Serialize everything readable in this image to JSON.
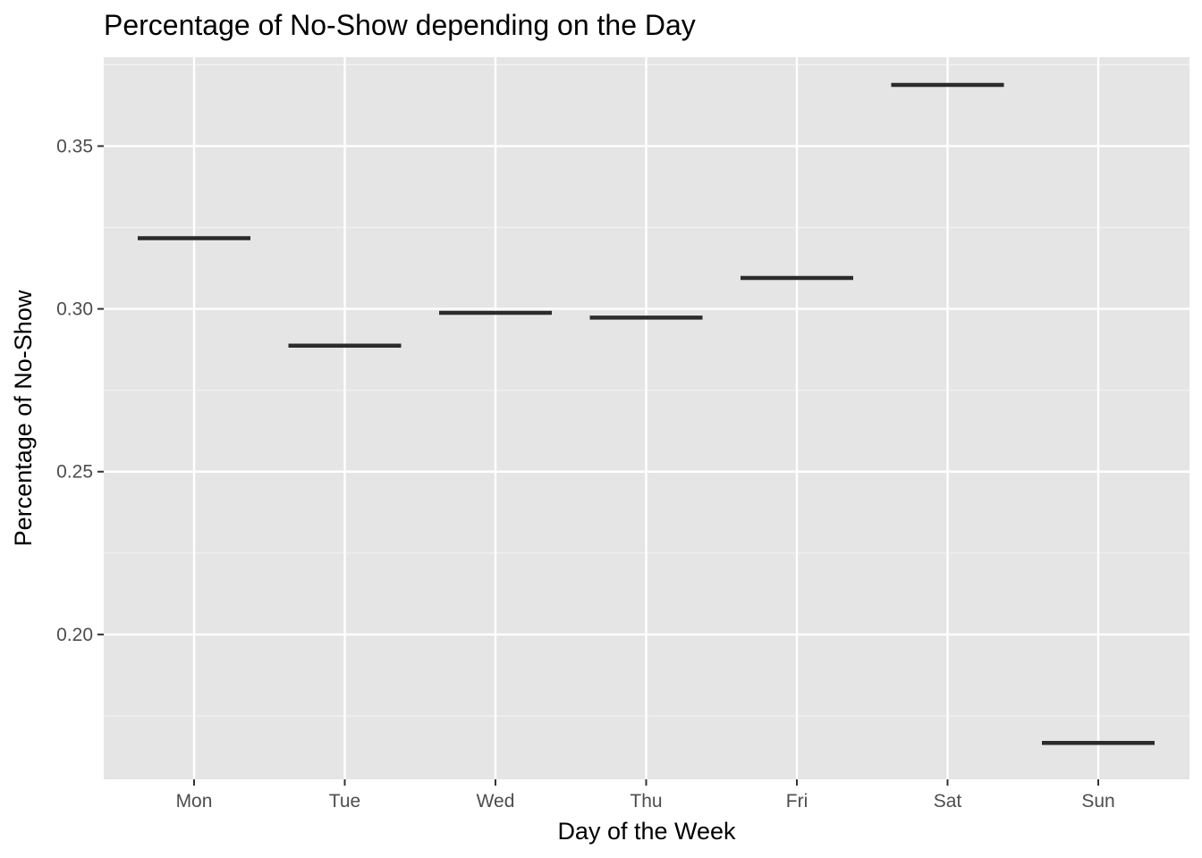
{
  "chart_data": {
    "type": "crossbar",
    "title": "Percentage of No-Show depending on the Day",
    "xlabel": "Day of the Week",
    "ylabel": "Percentage of No-Show",
    "categories": [
      "Mon",
      "Tue",
      "Wed",
      "Thu",
      "Fri",
      "Sat",
      "Sun"
    ],
    "values": [
      0.3217,
      0.2887,
      0.2988,
      0.2973,
      0.3095,
      0.3688,
      0.1667
    ],
    "ylim": [
      0.1555,
      0.3773
    ],
    "yticks": [
      0.2,
      0.25,
      0.3,
      0.35
    ],
    "ytick_labels": [
      "0.20",
      "0.25",
      "0.30",
      "0.35"
    ],
    "grid": true,
    "legend": "none",
    "colors": {
      "panel_background": "#e5e5e5",
      "grid_major": "#ffffff",
      "grid_minor": "#f2f2f2",
      "mark": "#2b2b2b",
      "tick_text": "#4d4d4d"
    }
  }
}
